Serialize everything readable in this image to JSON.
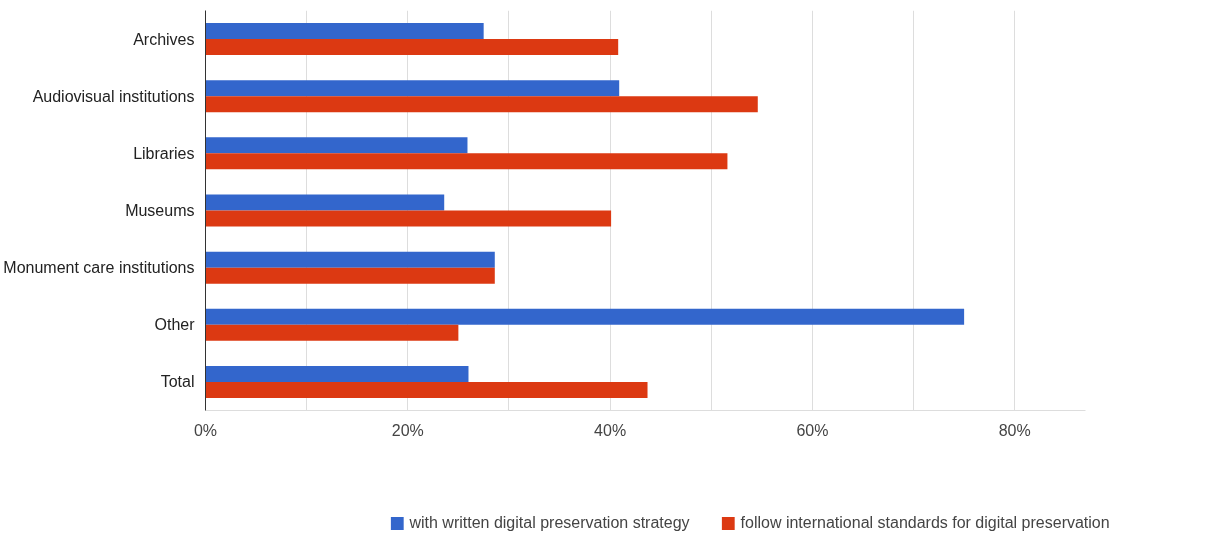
{
  "chart_data": {
    "type": "bar",
    "orientation": "horizontal",
    "categories": [
      "Archives",
      "Audiovisual institutions",
      "Libraries",
      "Museums",
      "Monument care institutions",
      "Other",
      "Total"
    ],
    "series": [
      {
        "name": "with written digital preservation strategy",
        "color": "#3366cc",
        "values": [
          27.5,
          40.9,
          25.9,
          23.6,
          28.6,
          75.0,
          26.0
        ]
      },
      {
        "name": "follow international standards for digital preservation",
        "color": "#dc3912",
        "values": [
          40.8,
          54.6,
          51.6,
          40.1,
          28.6,
          25.0,
          43.7
        ]
      }
    ],
    "xlim": [
      0,
      87
    ],
    "xticks": [
      {
        "value": 0,
        "label": "0%"
      },
      {
        "value": 10,
        "label": null
      },
      {
        "value": 20,
        "label": "20%"
      },
      {
        "value": 30,
        "label": null
      },
      {
        "value": 40,
        "label": "40%"
      },
      {
        "value": 50,
        "label": null
      },
      {
        "value": 60,
        "label": "60%"
      },
      {
        "value": 70,
        "label": null
      },
      {
        "value": 80,
        "label": "80%"
      }
    ],
    "grid": "x",
    "legend": "bottom"
  }
}
